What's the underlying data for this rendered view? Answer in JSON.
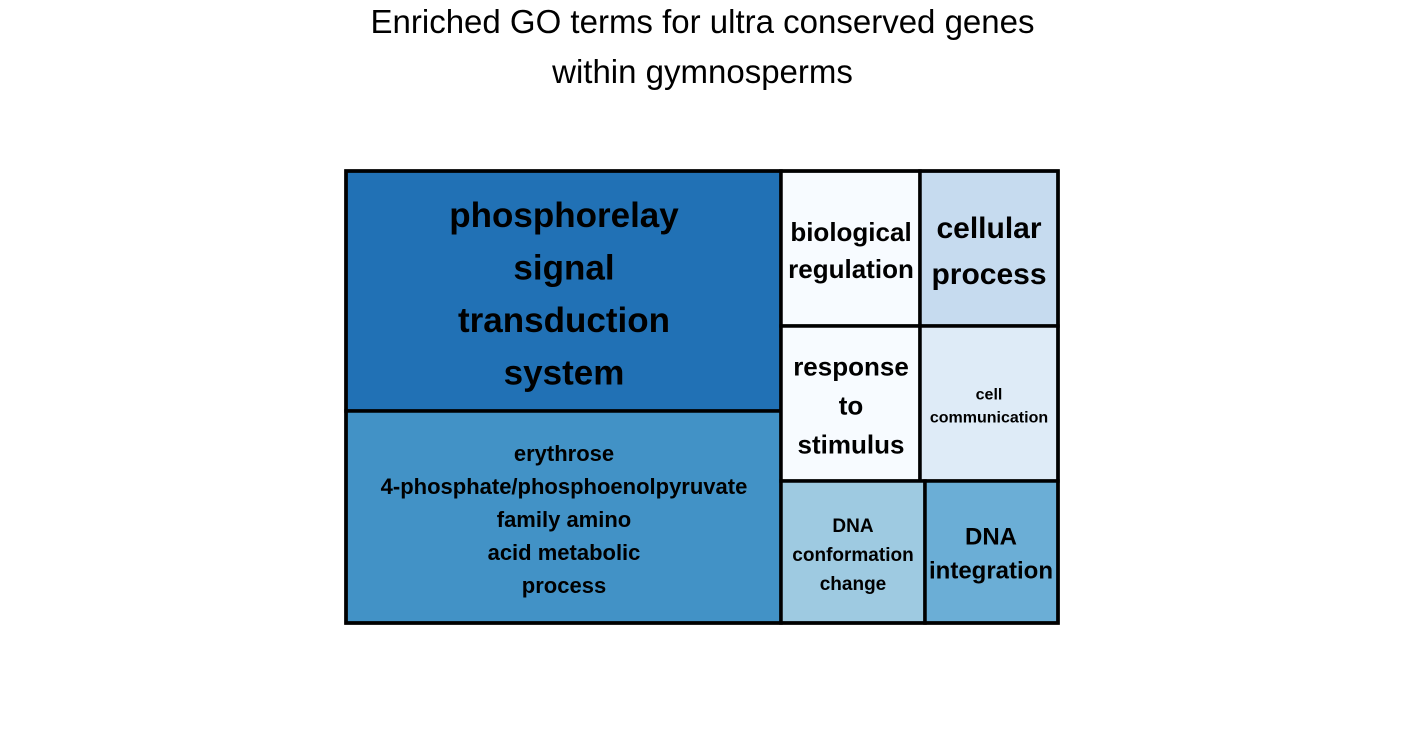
{
  "chart_data": {
    "type": "treemap",
    "title": [
      "Enriched GO terms for ultra conserved genes",
      "within gymnosperms"
    ],
    "color_scale": "blues",
    "items": [
      {
        "label": [
          "phosphorelay",
          "signal",
          "transduction",
          "system"
        ],
        "color": "#2171b5"
      },
      {
        "label": [
          "erythrose",
          "4-phosphate/phosphoenolpyruvate",
          "family amino",
          "acid metabolic",
          "process"
        ],
        "color": "#4292c6"
      },
      {
        "label": [
          "biological",
          "regulation"
        ],
        "color": "#f7fbff"
      },
      {
        "label": [
          "cellular",
          "process"
        ],
        "color": "#c6dbef"
      },
      {
        "label": [
          "response",
          "to",
          "stimulus"
        ],
        "color": "#f7fbff"
      },
      {
        "label": [
          "cell",
          "communication"
        ],
        "color": "#deebf7"
      },
      {
        "label": [
          "DNA",
          "conformation",
          "change"
        ],
        "color": "#9ecae1"
      },
      {
        "label": [
          "DNA",
          "integration"
        ],
        "color": "#6baed6"
      }
    ]
  }
}
